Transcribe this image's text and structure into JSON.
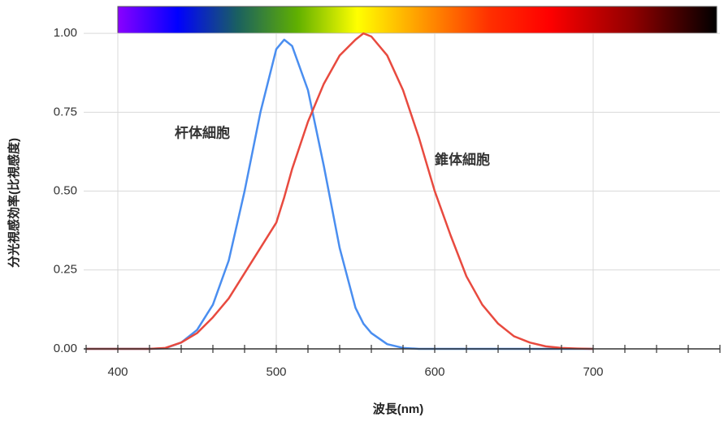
{
  "chart_data": {
    "type": "line",
    "x_label": "波長(nm)",
    "y_label": "分光視感効率(比視感度)",
    "x": [
      380,
      390,
      400,
      410,
      420,
      430,
      440,
      450,
      460,
      470,
      480,
      490,
      500,
      505,
      510,
      520,
      530,
      540,
      550,
      555,
      560,
      570,
      580,
      590,
      600,
      610,
      620,
      630,
      640,
      650,
      660,
      670,
      680,
      690,
      700
    ],
    "series": [
      {
        "name": "杆体細胞",
        "color": "#4a8ef0",
        "values": [
          0,
          0,
          0,
          0,
          0,
          0.002,
          0.02,
          0.06,
          0.14,
          0.28,
          0.5,
          0.75,
          0.95,
          0.98,
          0.96,
          0.82,
          0.58,
          0.32,
          0.13,
          0.08,
          0.05,
          0.015,
          0.003,
          0,
          0,
          0,
          0,
          0,
          0,
          0,
          0,
          0,
          0,
          0,
          0
        ]
      },
      {
        "name": "錐体細胞",
        "color": "#e84a3f",
        "values": [
          0,
          0,
          0,
          0,
          0,
          0.003,
          0.02,
          0.05,
          0.1,
          0.16,
          0.24,
          0.32,
          0.4,
          0.48,
          0.57,
          0.72,
          0.84,
          0.93,
          0.98,
          1.0,
          0.99,
          0.93,
          0.82,
          0.67,
          0.5,
          0.36,
          0.23,
          0.14,
          0.08,
          0.04,
          0.02,
          0.008,
          0.003,
          0.001,
          0
        ]
      }
    ],
    "xlim": [
      380,
      780
    ],
    "ylim": [
      0,
      1.08
    ],
    "xticks": [
      400,
      500,
      600,
      700
    ],
    "xminorticks": [
      380,
      400,
      420,
      440,
      460,
      480,
      500,
      520,
      540,
      560,
      580,
      600,
      620,
      640,
      660,
      680,
      700,
      720,
      740,
      760,
      780
    ],
    "yticks": [
      {
        "value": 0,
        "label": "0.00"
      },
      {
        "value": 0.25,
        "label": "0.25"
      },
      {
        "value": 0.5,
        "label": "0.50"
      },
      {
        "value": 0.75,
        "label": "0.75"
      },
      {
        "value": 1,
        "label": "1.00"
      }
    ],
    "grid": true
  }
}
